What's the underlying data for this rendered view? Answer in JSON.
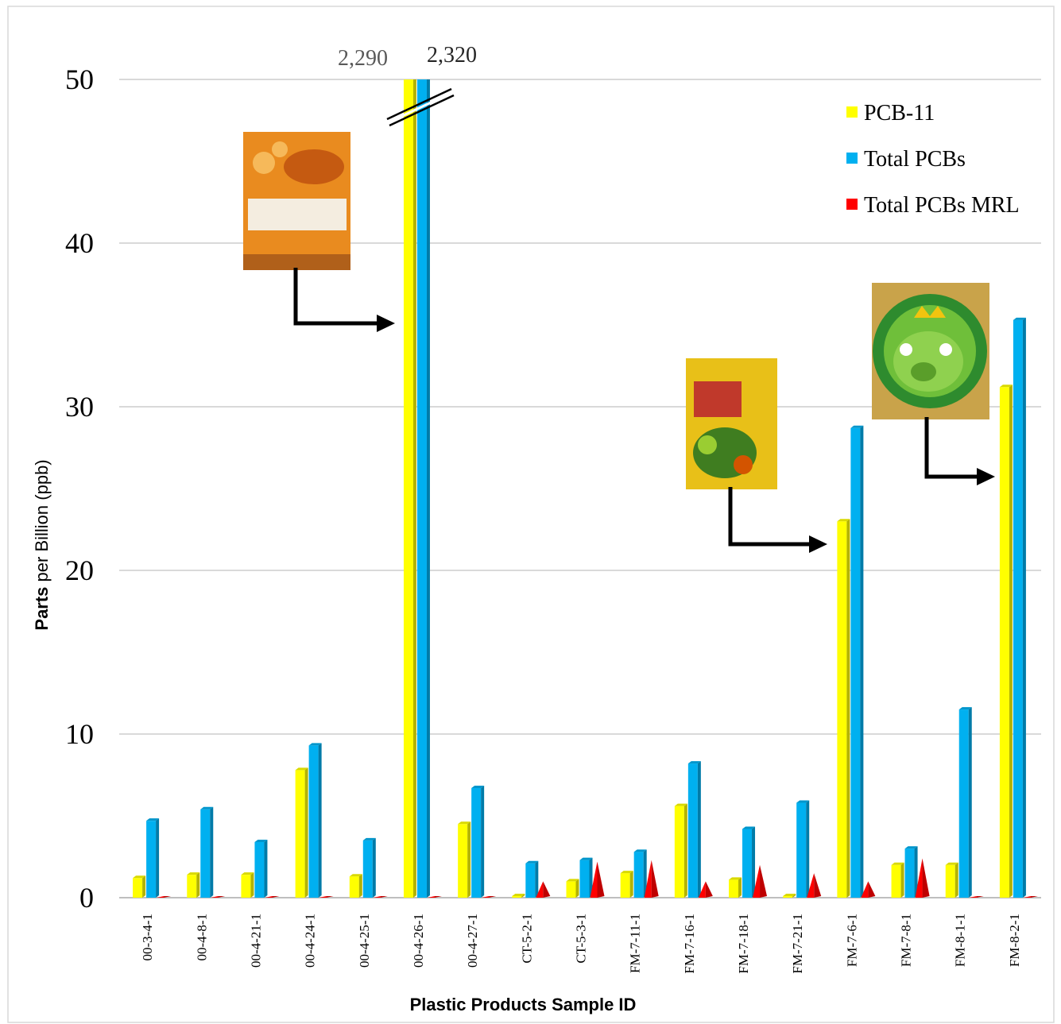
{
  "chart_data": {
    "type": "bar",
    "xlabel": "Plastic Products Sample ID",
    "ylabel": "Parts per Billion (ppb)",
    "categories": [
      "00-3-4-1",
      "00-4-8-1",
      "00-4-21-1",
      "00-4-24-1",
      "00-4-25-1",
      "00-4-26-1",
      "00-4-27-1",
      "CT-5-2-1",
      "CT-5-3-1",
      "FM-7-11-1",
      "FM-7-16-1",
      "FM-7-18-1",
      "FM-7-21-1",
      "FM-7-6-1",
      "FM-7-8-1",
      "FM-8-1-1",
      "FM-8-2-1"
    ],
    "series": [
      {
        "name": "PCB-11",
        "color": "#ffff00",
        "values": [
          1.2,
          1.4,
          1.4,
          7.8,
          1.3,
          2290,
          4.5,
          0.1,
          1.0,
          1.5,
          5.6,
          1.1,
          0.1,
          23.0,
          2.0,
          2.0,
          31.2
        ],
        "value_labels": [
          null,
          null,
          null,
          null,
          null,
          "2,290",
          null,
          null,
          null,
          null,
          null,
          null,
          null,
          null,
          null,
          null,
          null
        ]
      },
      {
        "name": "Total PCBs",
        "color": "#00b0f0",
        "values": [
          4.7,
          5.4,
          3.4,
          9.3,
          3.5,
          2320,
          6.7,
          2.1,
          2.3,
          2.8,
          8.2,
          4.2,
          5.8,
          28.7,
          3.0,
          11.5,
          35.3
        ],
        "value_labels": [
          null,
          null,
          null,
          null,
          null,
          "2,320",
          null,
          null,
          null,
          null,
          null,
          null,
          null,
          null,
          null,
          null,
          null
        ]
      },
      {
        "name": "Total PCBs MRL",
        "color": "#ff0000",
        "values": [
          0.1,
          0.1,
          0.1,
          0.1,
          0.1,
          0.1,
          0.1,
          1.0,
          2.2,
          2.3,
          1.0,
          2.0,
          1.5,
          1.0,
          2.4,
          0.1,
          0.1
        ]
      }
    ],
    "ylim": [
      0,
      50
    ],
    "yticks": [
      0,
      10,
      20,
      30,
      40,
      50
    ],
    "grid": true,
    "legend": "top-right"
  }
}
